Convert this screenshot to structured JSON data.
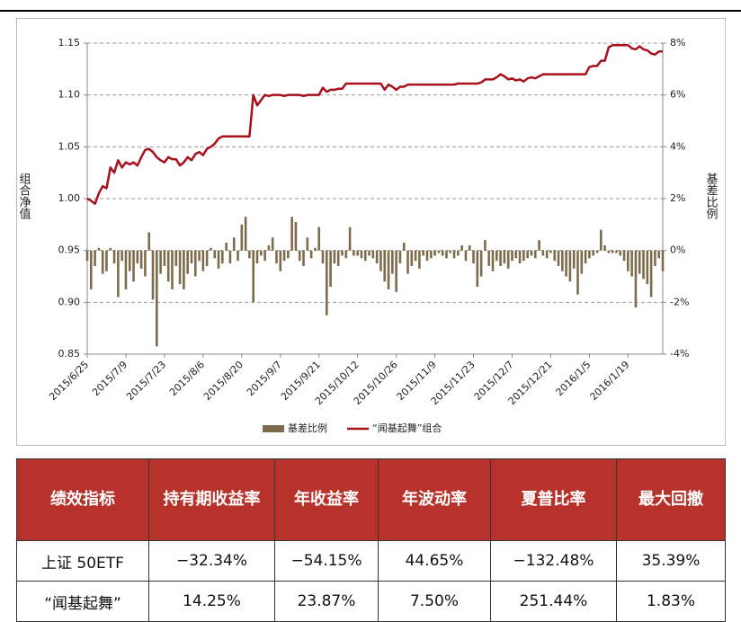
{
  "chart_data": {
    "type": "combo",
    "y_label": "组合净值",
    "y2_label": "基差比例",
    "categories": [
      "2015/6/25",
      null,
      null,
      null,
      null,
      null,
      null,
      null,
      null,
      null,
      "2015/7/9",
      null,
      null,
      null,
      null,
      null,
      null,
      null,
      null,
      null,
      "2015/7/23",
      null,
      null,
      null,
      null,
      null,
      null,
      null,
      null,
      null,
      "2015/8/6",
      null,
      null,
      null,
      null,
      null,
      null,
      null,
      null,
      null,
      "2015/8/20",
      null,
      null,
      null,
      null,
      null,
      null,
      null,
      null,
      null,
      "2015/9/7",
      null,
      null,
      null,
      null,
      null,
      null,
      null,
      null,
      null,
      "2015/9/21",
      null,
      null,
      null,
      null,
      null,
      null,
      null,
      null,
      null,
      "2015/10/12",
      null,
      null,
      null,
      null,
      null,
      null,
      null,
      null,
      null,
      "2015/10/26",
      null,
      null,
      null,
      null,
      null,
      null,
      null,
      null,
      null,
      "2015/11/9",
      null,
      null,
      null,
      null,
      null,
      null,
      null,
      null,
      null,
      "2015/11/23",
      null,
      null,
      null,
      null,
      null,
      null,
      null,
      null,
      null,
      "2015/12/7",
      null,
      null,
      null,
      null,
      null,
      null,
      null,
      null,
      null,
      "2015/12/21",
      null,
      null,
      null,
      null,
      null,
      null,
      null,
      null,
      null,
      "2016/1/5",
      null,
      null,
      null,
      null,
      null,
      null,
      null,
      null,
      null,
      "2016/1/19",
      null,
      null,
      null,
      null,
      null,
      null,
      null,
      null,
      null
    ],
    "series": [
      {
        "name": "基差比例",
        "type": "bar",
        "axis": "y2",
        "color": "#7d6c4c",
        "values": [
          -0.4,
          -1.5,
          -0.6,
          0.1,
          -0.9,
          -0.8,
          0.1,
          -0.5,
          -1.8,
          -0.4,
          -1.5,
          -0.8,
          -1.2,
          -0.5,
          -0.7,
          -1.0,
          0.7,
          -1.9,
          -3.7,
          -0.9,
          -0.6,
          -1.2,
          -1.5,
          -0.6,
          -1.3,
          -1.5,
          -0.9,
          -0.5,
          -1.0,
          -0.4,
          -0.8,
          -0.6,
          0.1,
          -0.3,
          -0.7,
          -0.5,
          0.3,
          -0.5,
          0.5,
          -0.4,
          1.0,
          1.3,
          -0.3,
          -2.0,
          -0.5,
          -0.2,
          -0.4,
          0.2,
          0.5,
          -0.5,
          -0.8,
          -0.4,
          -0.3,
          1.3,
          1.1,
          -0.4,
          -0.6,
          0.5,
          -0.3,
          0.1,
          0.9,
          -0.5,
          -2.5,
          -1.4,
          -0.5,
          -0.6,
          -0.2,
          -0.3,
          0.9,
          -0.2,
          -0.2,
          -0.3,
          -0.4,
          -0.2,
          -0.3,
          -0.5,
          -0.8,
          -1.2,
          -1.5,
          -0.9,
          -1.6,
          -0.5,
          0.3,
          -0.9,
          -0.6,
          -0.4,
          -0.7,
          -0.2,
          -0.4,
          -0.3,
          -0.2,
          -0.1,
          -0.2,
          -0.3,
          -0.1,
          -0.3,
          -0.2,
          0.2,
          -0.4,
          0.2,
          -0.5,
          -1.4,
          -1.0,
          0.4,
          -0.6,
          -0.8,
          -0.4,
          -0.6,
          -0.5,
          -0.7,
          -0.4,
          -0.3,
          -0.5,
          -0.4,
          -0.3,
          -0.2,
          -0.3,
          0.4,
          -0.2,
          -0.3,
          -0.1,
          -0.4,
          -0.6,
          -0.8,
          -1.0,
          -1.2,
          -0.7,
          -1.7,
          -0.9,
          -0.5,
          -0.3,
          -0.2,
          -0.1,
          0.8,
          0.2,
          -0.1,
          -0.1,
          -0.1,
          -0.2,
          -0.4,
          -0.8,
          -1.0,
          -2.2,
          -0.9,
          -1.1,
          -1.3,
          -1.8,
          -0.6,
          -0.3,
          -0.8
        ]
      },
      {
        "name": "“闻基起舞”组合",
        "type": "line",
        "axis": "y",
        "color": "#a8101c",
        "values": [
          1.0,
          0.998,
          0.995,
          1.005,
          1.012,
          1.01,
          1.03,
          1.025,
          1.037,
          1.03,
          1.035,
          1.033,
          1.035,
          1.032,
          1.04,
          1.047,
          1.048,
          1.045,
          1.04,
          1.037,
          1.035,
          1.04,
          1.038,
          1.038,
          1.032,
          1.035,
          1.04,
          1.037,
          1.043,
          1.045,
          1.042,
          1.048,
          1.05,
          1.053,
          1.058,
          1.06,
          1.06,
          1.06,
          1.06,
          1.06,
          1.06,
          1.06,
          1.06,
          1.1,
          1.09,
          1.095,
          1.1,
          1.099,
          1.1,
          1.1,
          1.1,
          1.099,
          1.1,
          1.1,
          1.1,
          1.1,
          1.099,
          1.1,
          1.1,
          1.1,
          1.1,
          1.107,
          1.103,
          1.105,
          1.105,
          1.106,
          1.106,
          1.111,
          1.111,
          1.111,
          1.111,
          1.111,
          1.111,
          1.111,
          1.111,
          1.111,
          1.111,
          1.105,
          1.11,
          1.108,
          1.105,
          1.108,
          1.108,
          1.11,
          1.11,
          1.11,
          1.11,
          1.11,
          1.11,
          1.11,
          1.11,
          1.11,
          1.11,
          1.11,
          1.11,
          1.11,
          1.111,
          1.111,
          1.111,
          1.111,
          1.111,
          1.111,
          1.112,
          1.115,
          1.115,
          1.115,
          1.117,
          1.12,
          1.118,
          1.115,
          1.116,
          1.114,
          1.115,
          1.113,
          1.116,
          1.117,
          1.116,
          1.118,
          1.12,
          1.12,
          1.12,
          1.12,
          1.12,
          1.12,
          1.12,
          1.12,
          1.12,
          1.12,
          1.12,
          1.12,
          1.127,
          1.128,
          1.128,
          1.133,
          1.133,
          1.146,
          1.148,
          1.148,
          1.148,
          1.148,
          1.148,
          1.145,
          1.144,
          1.147,
          1.144,
          1.143,
          1.14,
          1.139,
          1.142,
          1.142
        ]
      }
    ],
    "ylim": [
      0.85,
      1.15
    ],
    "yticks": [
      0.85,
      {
        "value": 0.9,
        "label": "0.90"
      },
      0.95,
      {
        "value": 1.0,
        "label": "1.00"
      },
      1.05,
      {
        "value": 1.1,
        "label": "1.10"
      },
      1.15
    ],
    "y2lim": [
      -4,
      8
    ],
    "y2ticks": [
      {
        "value": -4,
        "label": "-4%"
      },
      {
        "value": -2,
        "label": "-2%"
      },
      {
        "value": 0,
        "label": "0%"
      },
      {
        "value": 2,
        "label": "2%"
      },
      {
        "value": 4,
        "label": "4%"
      },
      {
        "value": 6,
        "label": "6%"
      },
      {
        "value": 8,
        "label": "8%"
      }
    ],
    "grid": true,
    "legend": "bottom"
  },
  "table": {
    "header": [
      "绩效指标",
      "持有期收益率",
      "年收益率",
      "年波动率",
      "夏普比率",
      "最大回撤"
    ],
    "rows": [
      [
        "上证 50ETF",
        "−32.34%",
        "−54.15%",
        "44.65%",
        "−132.48%",
        "35.39%"
      ],
      [
        "“闻基起舞”",
        "14.25%",
        "23.87%",
        "7.50%",
        "251.44%",
        "1.83%"
      ]
    ]
  }
}
